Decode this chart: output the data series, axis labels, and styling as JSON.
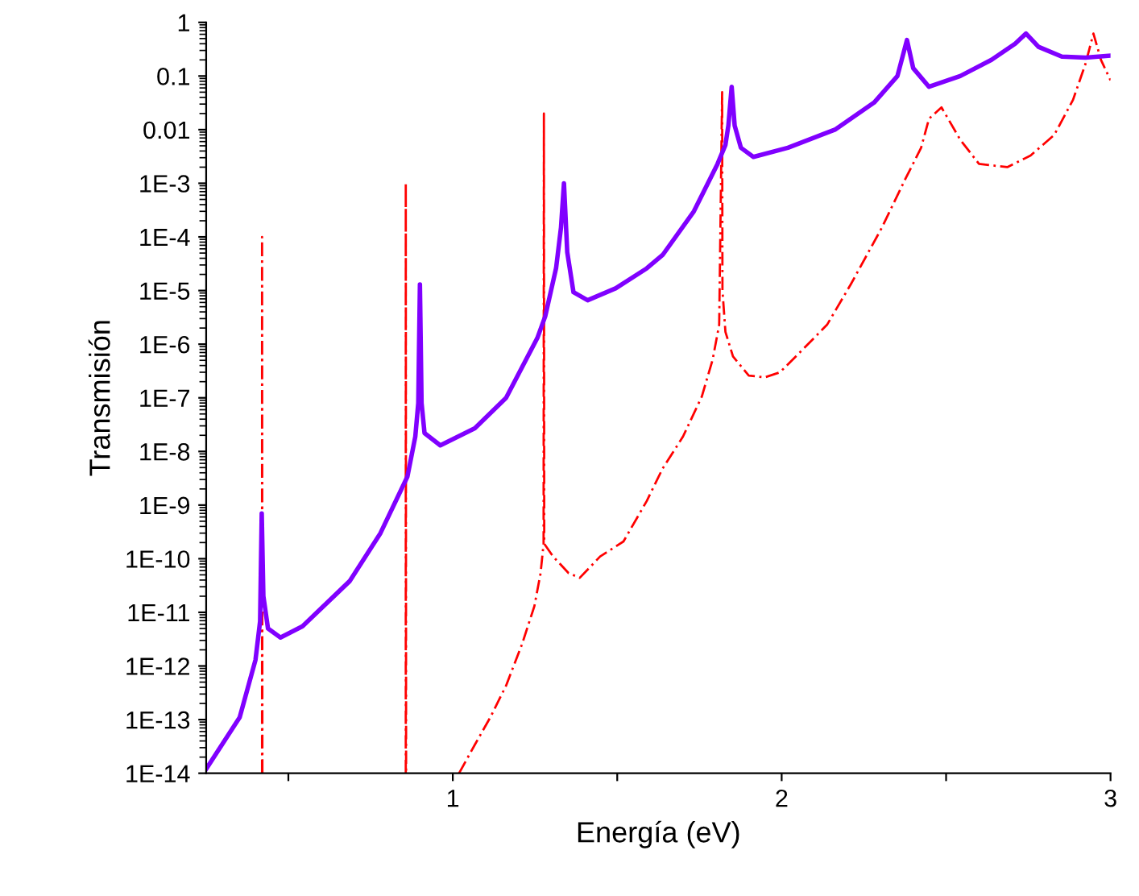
{
  "chart_data": {
    "type": "line",
    "xlabel": "Energía (eV)",
    "ylabel": "Transmisión",
    "log": "y",
    "grid": false,
    "xlim": [
      0.25,
      3
    ],
    "xticks": [
      {
        "value": 0.5,
        "label": null
      },
      1,
      {
        "value": 1.5,
        "label": null
      },
      2,
      {
        "value": 2.5,
        "label": null
      },
      3
    ],
    "ylim": [
      1e-14,
      1
    ],
    "yticks": [
      {
        "value": 1e-14,
        "label": "1E-14"
      },
      {
        "value": 1e-13,
        "label": "1E-13"
      },
      {
        "value": 1e-12,
        "label": "1E-12"
      },
      {
        "value": 1e-11,
        "label": "1E-11"
      },
      {
        "value": 1e-10,
        "label": "1E-10"
      },
      {
        "value": 1e-09,
        "label": "1E-9"
      },
      {
        "value": 1e-08,
        "label": "1E-8"
      },
      {
        "value": 1e-07,
        "label": "1E-7"
      },
      {
        "value": 1e-06,
        "label": "1E-6"
      },
      {
        "value": 1e-05,
        "label": "1E-5"
      },
      {
        "value": 0.0001,
        "label": "1E-4"
      },
      {
        "value": 0.001,
        "label": "1E-3"
      },
      {
        "value": 0.01,
        "label": "0.01"
      },
      {
        "value": 0.1,
        "label": "0.1"
      },
      1
    ],
    "series": [
      {
        "color": "#ff0000",
        "line_style": "dashed",
        "x": [
          0.42,
          0.42,
          0.421,
          0.5,
          0.857,
          0.857,
          0.858,
          0.95,
          1.019,
          1.067,
          1.114,
          1.162,
          1.21,
          1.248,
          1.267,
          1.276,
          1.277,
          1.278,
          1.305,
          1.352,
          1.386,
          1.448,
          1.519,
          1.59,
          1.638,
          1.7,
          1.757,
          1.79,
          1.81,
          1.819,
          1.82,
          1.829,
          1.852,
          1.9,
          1.948,
          1.995,
          2.067,
          2.138,
          2.21,
          2.305,
          2.376,
          2.424,
          2.448,
          2.486,
          2.543,
          2.6,
          2.686,
          2.757,
          2.829,
          2.886,
          2.924,
          2.948,
          2.971,
          3.0
        ],
        "values": [
          1e-14,
          0.0001,
          1e-14,
          null,
          1e-14,
          0.001,
          1e-14,
          null,
          1e-14,
          3.4e-14,
          1.1e-13,
          4.3e-13,
          2.5e-12,
          1.3e-11,
          5.4e-11,
          1.9e-10,
          0.02,
          1.9e-10,
          1.1e-10,
          5.4e-11,
          4.4e-11,
          1.1e-10,
          2.1e-10,
          1.2e-09,
          4.8e-09,
          1.9e-08,
          1.05e-07,
          5.1e-07,
          2.3e-06,
          0.05,
          1e-05,
          1.7e-06,
          5.9e-07,
          2.6e-07,
          2.4e-07,
          3e-07,
          8.3e-07,
          2.3e-06,
          1.3e-05,
          0.00015,
          0.0012,
          0.0046,
          0.016,
          0.026,
          0.0065,
          0.0023,
          0.002,
          0.0033,
          0.008,
          0.036,
          0.17,
          0.62,
          0.2,
          0.083
        ]
      },
      {
        "color": "#8000ff",
        "line_style": "solid",
        "x": [
          0.25,
          0.352,
          0.4,
          0.414,
          0.419,
          0.424,
          0.438,
          0.476,
          0.543,
          0.686,
          0.78,
          0.862,
          0.886,
          0.895,
          0.9,
          0.905,
          0.914,
          0.962,
          1.067,
          1.162,
          1.257,
          1.281,
          1.314,
          1.329,
          1.338,
          1.348,
          1.367,
          1.41,
          1.495,
          1.59,
          1.638,
          1.733,
          1.805,
          1.829,
          1.838,
          1.848,
          1.857,
          1.876,
          1.914,
          2.019,
          2.162,
          2.281,
          2.352,
          2.381,
          2.4,
          2.448,
          2.543,
          2.638,
          2.71,
          2.743,
          2.781,
          2.852,
          2.924,
          3.0
        ],
        "values": [
          1.2e-14,
          1.1e-13,
          1.3e-12,
          6.8e-12,
          7e-10,
          2e-11,
          5e-12,
          3.4e-12,
          5.5e-12,
          3.8e-11,
          3e-10,
          3.4e-09,
          1.9e-08,
          8e-08,
          1.3e-05,
          8e-08,
          2.2e-08,
          1.3e-08,
          2.7e-08,
          1e-07,
          1.3e-06,
          3.3e-06,
          2.6e-05,
          0.00015,
          0.001,
          5.2e-05,
          9.3e-06,
          6.6e-06,
          1.1e-05,
          2.6e-05,
          4.6e-05,
          0.0003,
          0.0023,
          0.0052,
          0.012,
          0.063,
          0.012,
          0.0046,
          0.0031,
          0.0046,
          0.01,
          0.032,
          0.1,
          0.47,
          0.14,
          0.063,
          0.1,
          0.2,
          0.4,
          0.62,
          0.35,
          0.23,
          0.22,
          0.24
        ]
      }
    ]
  }
}
